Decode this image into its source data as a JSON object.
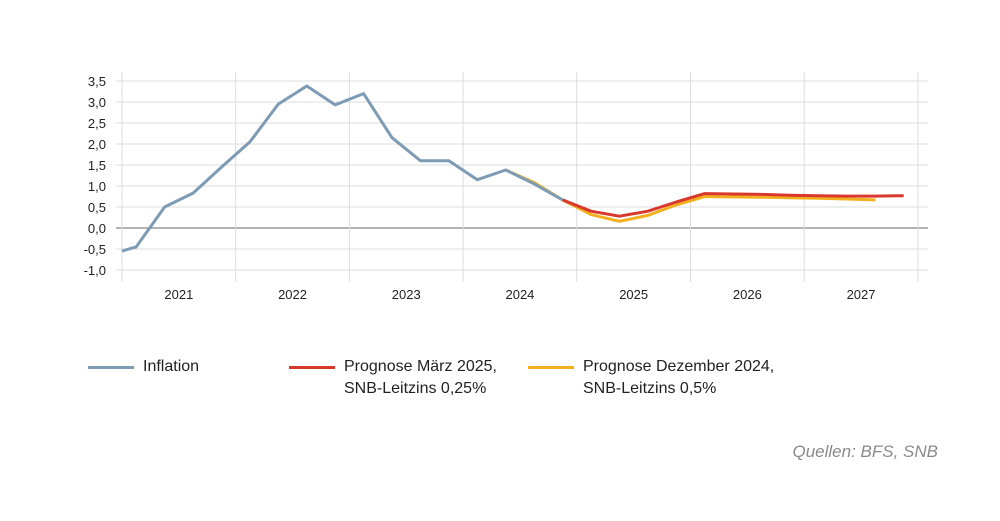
{
  "chart_data": {
    "type": "line",
    "title": "",
    "xlabel": "",
    "ylabel": "",
    "ylim": [
      -1.0,
      3.5
    ],
    "yticks": [
      "-1,0",
      "-0,5",
      "0,0",
      "0,5",
      "1,0",
      "1,5",
      "2,0",
      "2,5",
      "3,0",
      "3,5"
    ],
    "xlim": [
      2021,
      2028
    ],
    "xtick_labels": [
      "2021",
      "2022",
      "2023",
      "2024",
      "2025",
      "2026",
      "2027"
    ],
    "grid": true,
    "legend_position": "bottom",
    "series": [
      {
        "name": "Inflation",
        "color": "#7d9bb5",
        "x": [
          2021.0,
          2021.125,
          2021.375,
          2021.625,
          2021.875,
          2022.125,
          2022.375,
          2022.625,
          2022.875,
          2023.125,
          2023.375,
          2023.625,
          2023.875,
          2024.125,
          2024.375,
          2024.625,
          2024.875
        ],
        "y": [
          -0.55,
          -0.45,
          0.5,
          0.83,
          1.45,
          2.05,
          2.95,
          3.38,
          2.93,
          3.2,
          2.15,
          1.6,
          1.6,
          1.15,
          1.38,
          1.05,
          0.67
        ]
      },
      {
        "name": "Prognose März 2025, SNB-Leitzins 0,25%",
        "color": "#d9382c",
        "x": [
          2024.875,
          2025.125,
          2025.375,
          2025.625,
          2025.875,
          2026.125,
          2026.375,
          2026.625,
          2026.875,
          2027.125,
          2027.375,
          2027.625,
          2027.875
        ],
        "y": [
          0.67,
          0.4,
          0.28,
          0.4,
          0.62,
          0.82,
          0.81,
          0.8,
          0.78,
          0.77,
          0.76,
          0.76,
          0.77
        ]
      },
      {
        "name": "Prognose Dezember 2024, SNB-Leitzins 0,5%",
        "color": "#f2b01e",
        "x": [
          2024.375,
          2024.625,
          2024.875,
          2025.125,
          2025.375,
          2025.625,
          2025.875,
          2026.125,
          2026.375,
          2026.625,
          2026.875,
          2027.125,
          2027.375,
          2027.625
        ],
        "y": [
          1.38,
          1.08,
          0.67,
          0.32,
          0.16,
          0.3,
          0.55,
          0.75,
          0.74,
          0.73,
          0.72,
          0.71,
          0.69,
          0.67
        ]
      }
    ]
  },
  "legend": [
    {
      "line1": "Inflation",
      "line2": ""
    },
    {
      "line1": "Prognose März 2025,",
      "line2": "SNB-Leitzins 0,25%"
    },
    {
      "line1": "Prognose Dezember 2024,",
      "line2": "SNB-Leitzins 0,5%"
    }
  ],
  "source": "Quellen: BFS, SNB"
}
